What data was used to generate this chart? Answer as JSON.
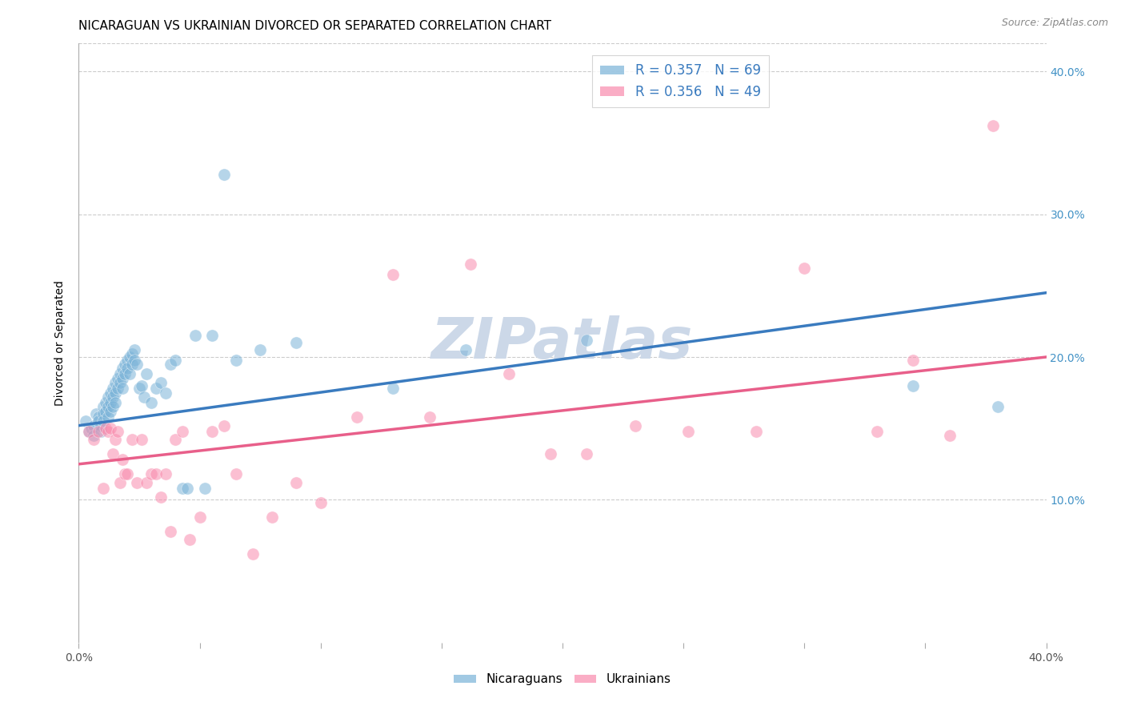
{
  "title": "NICARAGUAN VS UKRAINIAN DIVORCED OR SEPARATED CORRELATION CHART",
  "source": "Source: ZipAtlas.com",
  "ylabel": "Divorced or Separated",
  "watermark": "ZIPatlas",
  "legend_r": [
    {
      "label": "R = 0.357   N = 69",
      "color": "#a8c4e0"
    },
    {
      "label": "R = 0.356   N = 49",
      "color": "#f4a0b0"
    }
  ],
  "legend_labels": [
    "Nicaraguans",
    "Ukrainians"
  ],
  "blue_color": "#7ab3d8",
  "pink_color": "#f98bad",
  "blue_line_color": "#3a7bbf",
  "pink_line_color": "#e85f8a",
  "xlim": [
    0.0,
    0.4
  ],
  "ylim": [
    0.0,
    0.42
  ],
  "yticks": [
    0.1,
    0.2,
    0.3,
    0.4
  ],
  "xtick_positions": [
    0.0,
    0.05,
    0.1,
    0.15,
    0.2,
    0.25,
    0.3,
    0.35,
    0.4
  ],
  "xtick_labels_show": [
    "0.0%",
    "",
    "",
    "",
    "",
    "",
    "",
    "",
    "40.0%"
  ],
  "blue_scatter_x": [
    0.003,
    0.004,
    0.005,
    0.006,
    0.006,
    0.007,
    0.008,
    0.008,
    0.009,
    0.009,
    0.01,
    0.01,
    0.01,
    0.011,
    0.011,
    0.012,
    0.012,
    0.012,
    0.013,
    0.013,
    0.013,
    0.014,
    0.014,
    0.014,
    0.015,
    0.015,
    0.015,
    0.016,
    0.016,
    0.017,
    0.017,
    0.018,
    0.018,
    0.018,
    0.019,
    0.019,
    0.02,
    0.02,
    0.021,
    0.021,
    0.022,
    0.022,
    0.023,
    0.023,
    0.024,
    0.025,
    0.026,
    0.027,
    0.028,
    0.03,
    0.032,
    0.034,
    0.036,
    0.038,
    0.04,
    0.043,
    0.045,
    0.048,
    0.052,
    0.055,
    0.06,
    0.065,
    0.075,
    0.09,
    0.13,
    0.16,
    0.21,
    0.345,
    0.38
  ],
  "blue_scatter_y": [
    0.155,
    0.148,
    0.15,
    0.152,
    0.145,
    0.16,
    0.158,
    0.155,
    0.152,
    0.148,
    0.165,
    0.16,
    0.155,
    0.168,
    0.162,
    0.172,
    0.165,
    0.158,
    0.175,
    0.168,
    0.162,
    0.178,
    0.172,
    0.165,
    0.182,
    0.175,
    0.168,
    0.185,
    0.178,
    0.188,
    0.182,
    0.192,
    0.185,
    0.178,
    0.195,
    0.188,
    0.198,
    0.192,
    0.2,
    0.188,
    0.202,
    0.195,
    0.205,
    0.198,
    0.195,
    0.178,
    0.18,
    0.172,
    0.188,
    0.168,
    0.178,
    0.182,
    0.175,
    0.195,
    0.198,
    0.108,
    0.108,
    0.215,
    0.108,
    0.215,
    0.328,
    0.198,
    0.205,
    0.21,
    0.178,
    0.205,
    0.212,
    0.18,
    0.165
  ],
  "pink_scatter_x": [
    0.004,
    0.006,
    0.008,
    0.01,
    0.011,
    0.012,
    0.013,
    0.014,
    0.015,
    0.016,
    0.017,
    0.018,
    0.019,
    0.02,
    0.022,
    0.024,
    0.026,
    0.028,
    0.03,
    0.032,
    0.034,
    0.036,
    0.038,
    0.04,
    0.043,
    0.046,
    0.05,
    0.055,
    0.06,
    0.065,
    0.072,
    0.08,
    0.09,
    0.1,
    0.115,
    0.13,
    0.145,
    0.162,
    0.178,
    0.195,
    0.21,
    0.23,
    0.252,
    0.28,
    0.3,
    0.33,
    0.345,
    0.36,
    0.378
  ],
  "pink_scatter_y": [
    0.148,
    0.142,
    0.148,
    0.108,
    0.15,
    0.148,
    0.15,
    0.132,
    0.142,
    0.148,
    0.112,
    0.128,
    0.118,
    0.118,
    0.142,
    0.112,
    0.142,
    0.112,
    0.118,
    0.118,
    0.102,
    0.118,
    0.078,
    0.142,
    0.148,
    0.072,
    0.088,
    0.148,
    0.152,
    0.118,
    0.062,
    0.088,
    0.112,
    0.098,
    0.158,
    0.258,
    0.158,
    0.265,
    0.188,
    0.132,
    0.132,
    0.152,
    0.148,
    0.148,
    0.262,
    0.148,
    0.198,
    0.145,
    0.362
  ],
  "blue_line": {
    "x0": 0.0,
    "x1": 0.4,
    "y0": 0.152,
    "y1": 0.245
  },
  "pink_line": {
    "x0": 0.0,
    "x1": 0.4,
    "y0": 0.125,
    "y1": 0.2
  },
  "background_color": "#ffffff",
  "grid_color": "#cccccc",
  "right_ytick_color": "#4292c6",
  "title_fontsize": 11,
  "tick_fontsize": 10,
  "watermark_color": "#ccd8e8",
  "watermark_fontsize": 52
}
